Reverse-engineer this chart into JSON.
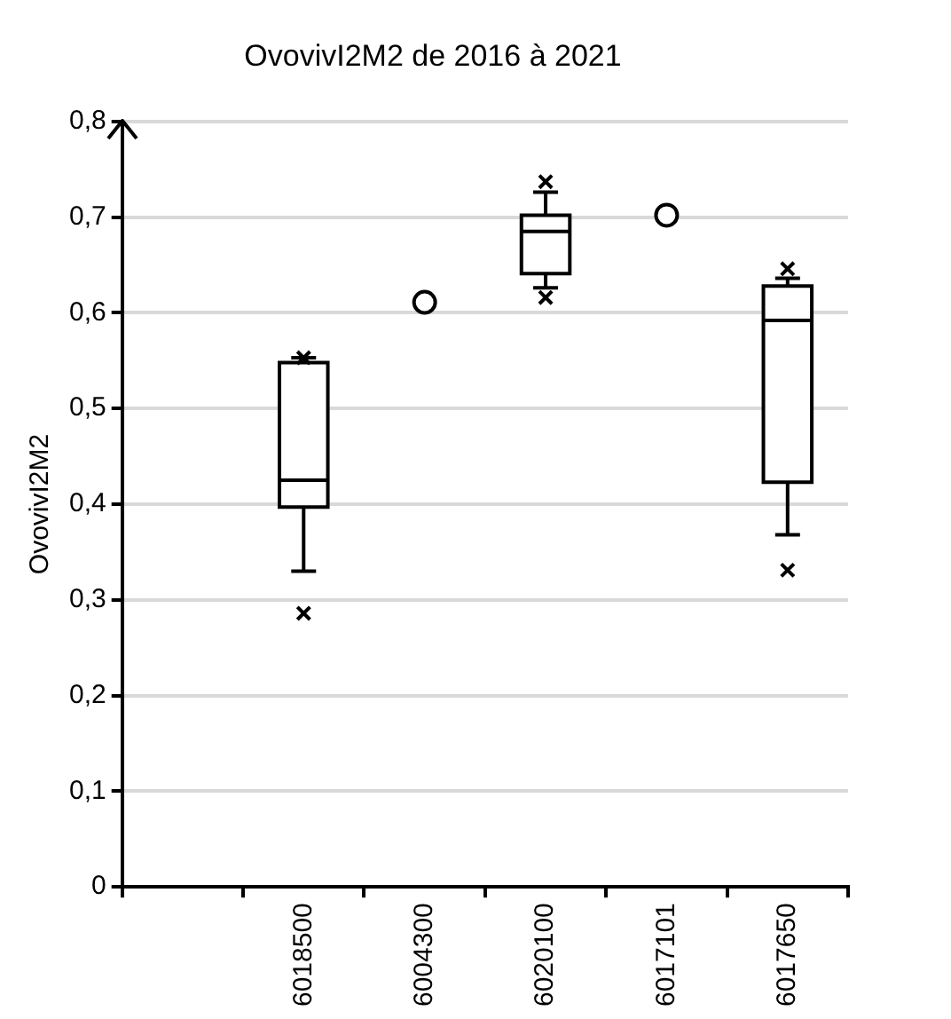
{
  "chart_data": {
    "type": "box",
    "title": "OvovivI2M2 de 2016 à 2021",
    "ylabel": "OvovivI2M2",
    "categories": [
      null,
      "6018500",
      "6004300",
      "6020100",
      "6017101",
      "6017650"
    ],
    "ylim": [
      0,
      0.8
    ],
    "yticks": [
      0,
      {
        "value": 0.1,
        "label": "0,1"
      },
      {
        "value": 0.2,
        "label": "0,2"
      },
      {
        "value": 0.3,
        "label": "0,3"
      },
      {
        "value": 0.4,
        "label": "0,4"
      },
      {
        "value": 0.5,
        "label": "0,5"
      },
      {
        "value": 0.6,
        "label": "0,6"
      },
      {
        "value": 0.7,
        "label": "0,7"
      },
      {
        "value": 0.8,
        "label": "0,8"
      }
    ],
    "grid": "y",
    "legend": false,
    "series": [
      {
        "type": "box",
        "color": "#000000",
        "boxes": [
          null,
          {
            "low": 0.33,
            "q1": 0.397,
            "median": 0.425,
            "q3": 0.548,
            "high": 0.553,
            "outliers": [
              0.286,
              0.553
            ]
          },
          null,
          {
            "low": 0.626,
            "q1": 0.641,
            "median": 0.685,
            "q3": 0.702,
            "high": 0.726,
            "outliers": [
              0.616,
              0.737
            ]
          },
          null,
          {
            "low": 0.368,
            "q1": 0.423,
            "median": 0.592,
            "q3": 0.628,
            "high": 0.636,
            "outliers": [
              0.331,
              0.646
            ]
          }
        ]
      },
      {
        "type": "scatter",
        "color": "#000000",
        "marker": "circle",
        "x": [
          "6004300",
          "6017101"
        ],
        "values": [
          0.611,
          0.702
        ]
      }
    ]
  }
}
